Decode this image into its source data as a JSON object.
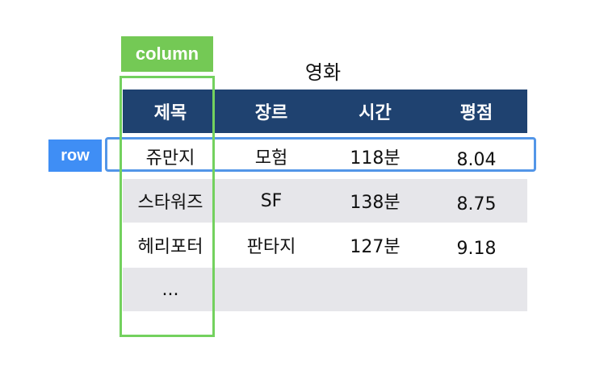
{
  "labels": {
    "column": "column",
    "row": "row"
  },
  "table": {
    "title": "영화",
    "headers": [
      "제목",
      "장르",
      "시간",
      "평점"
    ],
    "rows": [
      [
        "쥬만지",
        "모험",
        "118분",
        "8.04"
      ],
      [
        "스타워즈",
        "SF",
        "138분",
        "8.75"
      ],
      [
        "헤리포터",
        "판타지",
        "127분",
        "9.18"
      ],
      [
        "...",
        "",
        "",
        ""
      ]
    ]
  },
  "colors": {
    "header_bg": "#1f4270",
    "row_gray": "#e6e6ea",
    "column_highlight": "#73d15e",
    "row_highlight": "#5396e8"
  }
}
